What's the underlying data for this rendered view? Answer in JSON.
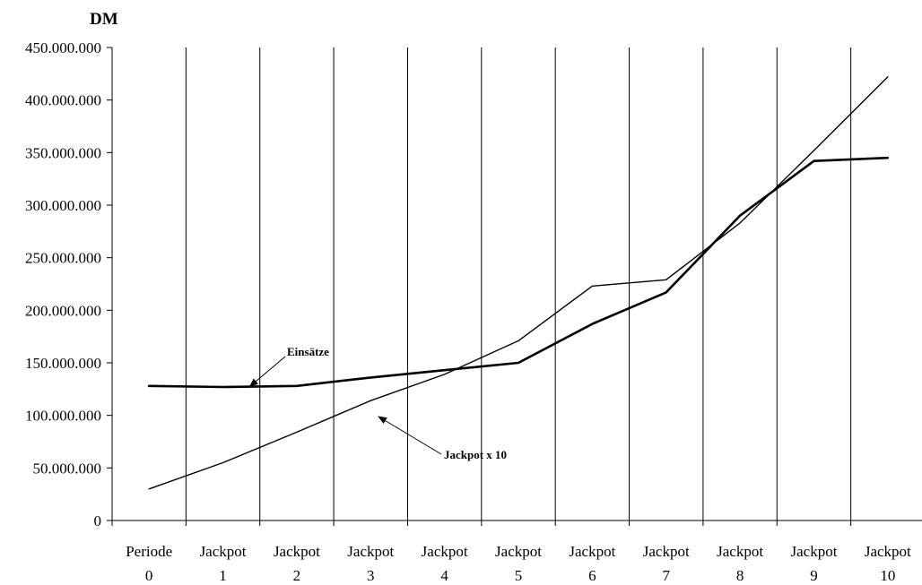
{
  "chart_data": {
    "type": "line",
    "ylabel": "DM",
    "ylim": [
      0,
      450000000
    ],
    "ytick_values": [
      0,
      50000000,
      100000000,
      150000000,
      200000000,
      250000000,
      300000000,
      350000000,
      400000000,
      450000000
    ],
    "ytick_labels": [
      "0",
      "50.000.000",
      "100.000.000",
      "150.000.000",
      "200.000.000",
      "250.000.000",
      "300.000.000",
      "350.000.000",
      "400.000.000",
      "450.000.000"
    ],
    "categories": [
      [
        "Periode",
        "0"
      ],
      [
        "Jackpot",
        "1"
      ],
      [
        "Jackpot",
        "2"
      ],
      [
        "Jackpot",
        "3"
      ],
      [
        "Jackpot",
        "4"
      ],
      [
        "Jackpot",
        "5"
      ],
      [
        "Jackpot",
        "6"
      ],
      [
        "Jackpot",
        "7"
      ],
      [
        "Jackpot",
        "8"
      ],
      [
        "Jackpot",
        "9"
      ],
      [
        "Jackpot",
        "10"
      ]
    ],
    "grid": "vertical",
    "series": [
      {
        "name": "Einsätze",
        "values": [
          128000000,
          127000000,
          128000000,
          136000000,
          143000000,
          150000000,
          187000000,
          217000000,
          290000000,
          342000000,
          345000000
        ],
        "stroke_color": "#000000",
        "line_weight": "heavy"
      },
      {
        "name": "Jackpot x 10",
        "values": [
          30000000,
          55000000,
          84000000,
          114000000,
          139000000,
          171000000,
          223000000,
          229000000,
          283000000,
          352000000,
          422000000
        ],
        "stroke_color": "#000000",
        "line_weight": "thin"
      }
    ],
    "annotations": [
      {
        "text": "Einsätze",
        "points_to_series": "Einsätze",
        "at_category": 1
      },
      {
        "text": "Jackpot x 10",
        "points_to_series": "Jackpot x 10",
        "at_category": 3
      }
    ]
  }
}
